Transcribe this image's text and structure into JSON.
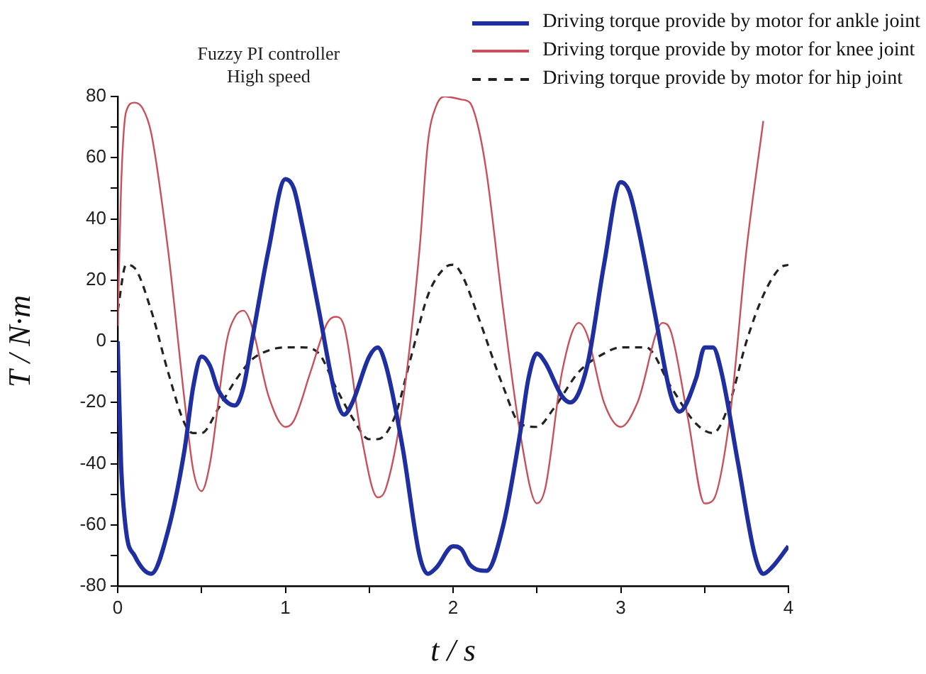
{
  "chart_data": {
    "type": "line",
    "title": "Fuzzy PI controller",
    "subtitle": "High speed",
    "xlabel": "t / s",
    "ylabel": "T / N·m",
    "xlim": [
      0,
      4
    ],
    "xticks": [
      0,
      {
        "value": 0.5,
        "label": null
      },
      1,
      {
        "value": 1.5,
        "label": null
      },
      2,
      {
        "value": 2.5,
        "label": null
      },
      3,
      {
        "value": 3.5,
        "label": null
      },
      4
    ],
    "ylim": [
      -80,
      80
    ],
    "yticks": [
      -80,
      {
        "value": -70,
        "label": null
      },
      -60,
      {
        "value": -50,
        "label": null
      },
      -40,
      {
        "value": -30,
        "label": null
      },
      -20,
      {
        "value": -10,
        "label": null
      },
      0,
      {
        "value": 10,
        "label": null
      },
      20,
      {
        "value": 30,
        "label": null
      },
      40,
      {
        "value": 50,
        "label": null
      },
      60,
      {
        "value": 70,
        "label": null
      },
      80
    ],
    "grid": false,
    "legend": "top right",
    "marker": "none",
    "series": [
      {
        "name": "Driving torque provide by motor for ankle joint",
        "color": "#1f2fa0",
        "line_style": "solid",
        "x": [
          0,
          0.02,
          0.05,
          0.1,
          0.2,
          0.3,
          0.4,
          0.45,
          0.5,
          0.55,
          0.6,
          0.7,
          0.75,
          0.8,
          0.9,
          1.0,
          1.05,
          1.1,
          1.2,
          1.3,
          1.35,
          1.4,
          1.5,
          1.55,
          1.6,
          1.7,
          1.8,
          1.85,
          1.9,
          2.0,
          2.05,
          2.1,
          2.2,
          2.3,
          2.4,
          2.45,
          2.5,
          2.55,
          2.65,
          2.7,
          2.8,
          2.9,
          3.0,
          3.05,
          3.1,
          3.2,
          3.3,
          3.35,
          3.45,
          3.5,
          3.55,
          3.6,
          3.7,
          3.8,
          3.85,
          3.9,
          4.0
        ],
        "values": [
          0,
          -40,
          -62,
          -70,
          -76,
          -62,
          -35,
          -15,
          -5,
          -8,
          -16,
          -21,
          -15,
          0,
          30,
          53,
          50,
          38,
          10,
          -18,
          -24,
          -20,
          -5,
          -2,
          -8,
          -35,
          -70,
          -76,
          -74,
          -67,
          -68,
          -73,
          -75,
          -60,
          -30,
          -12,
          -4,
          -7,
          -18,
          -20,
          -8,
          25,
          52,
          49,
          38,
          10,
          -18,
          -23,
          -12,
          -2,
          -2,
          -10,
          -40,
          -70,
          -76,
          -74,
          -67
        ]
      },
      {
        "name": "Driving torque provide by motor for knee joint",
        "color": "#c8505a",
        "line_style": "solid",
        "x": [
          0,
          0.02,
          0.05,
          0.1,
          0.15,
          0.2,
          0.3,
          0.4,
          0.45,
          0.5,
          0.55,
          0.65,
          0.7,
          0.75,
          0.8,
          0.9,
          1.0,
          1.05,
          1.15,
          1.25,
          1.3,
          1.35,
          1.45,
          1.55,
          1.6,
          1.7,
          1.8,
          1.85,
          1.9,
          1.95,
          2.05,
          2.1,
          2.15,
          2.2,
          2.3,
          2.4,
          2.5,
          2.55,
          2.65,
          2.75,
          2.8,
          2.9,
          3.0,
          3.1,
          3.25,
          3.3,
          3.4,
          3.5,
          3.55,
          3.65,
          3.75,
          3.85
        ],
        "values": [
          5,
          50,
          75,
          78,
          76,
          68,
          30,
          -20,
          -42,
          -49,
          -40,
          0,
          8,
          10,
          5,
          -18,
          -28,
          -26,
          -10,
          6,
          8,
          5,
          -30,
          -51,
          -48,
          -20,
          30,
          65,
          77,
          80,
          79,
          78,
          70,
          55,
          10,
          -30,
          -53,
          -48,
          -10,
          6,
          2,
          -20,
          -28,
          -20,
          6,
          3,
          -25,
          -53,
          -52,
          -25,
          30,
          72
        ]
      },
      {
        "name": "Driving torque provide by motor for hip joint",
        "color": "#222222",
        "line_style": "dashed",
        "x": [
          0,
          0.05,
          0.1,
          0.2,
          0.3,
          0.4,
          0.45,
          0.5,
          0.6,
          0.7,
          0.8,
          0.9,
          1.0,
          1.1,
          1.2,
          1.3,
          1.4,
          1.5,
          1.55,
          1.65,
          1.75,
          1.85,
          1.95,
          2.0,
          2.05,
          2.15,
          2.3,
          2.4,
          2.5,
          2.6,
          2.75,
          2.9,
          3.0,
          3.15,
          3.3,
          3.45,
          3.55,
          3.65,
          3.75,
          3.85,
          3.95,
          4.0
        ],
        "values": [
          10,
          25,
          24,
          10,
          -10,
          -27,
          -30,
          -30,
          -22,
          -13,
          -6,
          -3,
          -2,
          -2,
          -4,
          -15,
          -25,
          -32,
          -32,
          -25,
          -5,
          15,
          24,
          25,
          22,
          8,
          -15,
          -27,
          -28,
          -22,
          -10,
          -4,
          -2,
          -2,
          -15,
          -27,
          -30,
          -20,
          0,
          15,
          24,
          25
        ]
      }
    ]
  }
}
